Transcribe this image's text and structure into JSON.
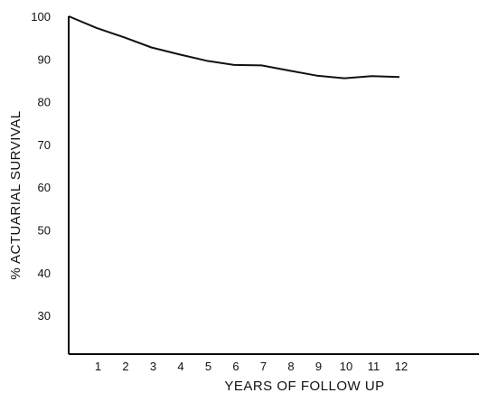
{
  "chart_data": {
    "type": "line",
    "title": "",
    "xlabel": "YEARS OF FOLLOW UP",
    "ylabel": "% ACTUARIAL SURVIVAL",
    "xlim": [
      0,
      15
    ],
    "ylim": [
      21,
      100
    ],
    "x_ticks": [
      1,
      2,
      3,
      4,
      5,
      6,
      7,
      8,
      9,
      10,
      11,
      12
    ],
    "y_ticks": [
      100,
      90,
      80,
      70,
      60,
      50,
      40,
      30
    ],
    "grid": false,
    "legend": "none",
    "series": [
      {
        "x": [
          0,
          1,
          2,
          3,
          4,
          5,
          6,
          7,
          8,
          9,
          10,
          11,
          12
        ],
        "values": [
          100,
          97.3,
          95.1,
          92.7,
          91.1,
          89.6,
          88.6,
          88.5,
          87.3,
          86.1,
          85.5,
          86.0,
          85.8
        ]
      }
    ]
  }
}
